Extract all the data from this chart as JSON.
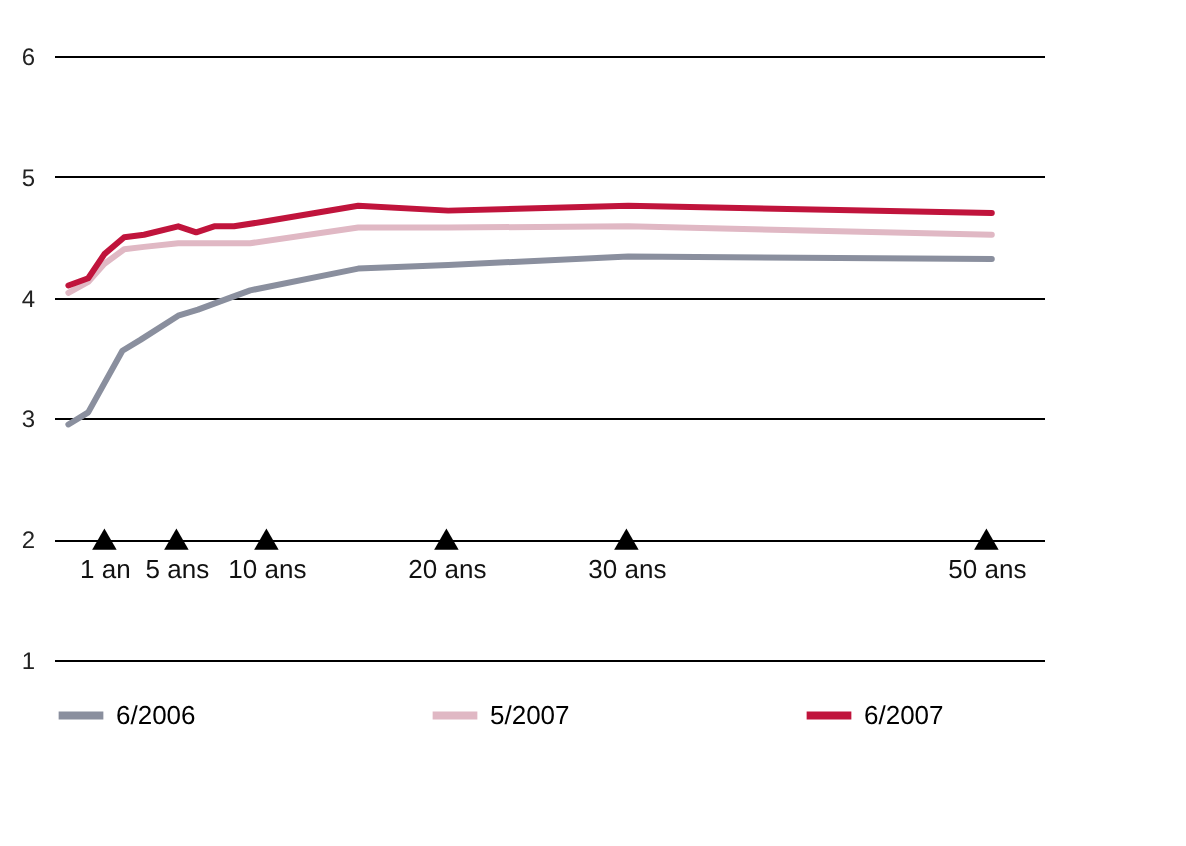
{
  "chart_data": {
    "type": "line",
    "xlim": [
      -1.8,
      53.2
    ],
    "ylim": [
      1,
      6
    ],
    "yticks": [
      1,
      2,
      3,
      4,
      5,
      6
    ],
    "grid": "y",
    "legend": "bottom",
    "xticks": [
      {
        "value": 1,
        "label": "1 an"
      },
      {
        "value": 5,
        "label": "5 ans"
      },
      {
        "value": 10,
        "label": "10 ans"
      },
      {
        "value": 20,
        "label": "20 ans"
      },
      {
        "value": 30,
        "label": "30 ans"
      },
      {
        "value": 50,
        "label": "50 ans"
      }
    ],
    "series": [
      {
        "name": "6/2006",
        "color": "#8a8f9e",
        "x": [
          -1,
          0.1,
          2,
          3,
          5.1,
          6.2,
          8,
          9.1,
          15.1,
          20.1,
          30.1,
          50.3
        ],
        "values": [
          2.95,
          3.05,
          3.56,
          3.65,
          3.85,
          3.9,
          4.0,
          4.06,
          4.24,
          4.27,
          4.34,
          4.32
        ]
      },
      {
        "name": "5/2007",
        "color": "#e0b8c4",
        "x": [
          -1,
          0.1,
          1,
          2.1,
          3.2,
          5.1,
          9.1,
          15.1,
          20.1,
          30.1,
          50.3
        ],
        "values": [
          4.04,
          4.13,
          4.28,
          4.4,
          4.42,
          4.45,
          4.45,
          4.58,
          4.58,
          4.59,
          4.52
        ]
      },
      {
        "name": "6/2007",
        "color": "#c0143c",
        "x": [
          -1,
          0.1,
          1,
          2.1,
          3.2,
          5.1,
          6.1,
          7.1,
          8.2,
          9.9,
          15.1,
          20.1,
          30.1,
          50.3
        ],
        "values": [
          4.1,
          4.16,
          4.36,
          4.5,
          4.52,
          4.59,
          4.54,
          4.59,
          4.59,
          4.63,
          4.76,
          4.72,
          4.76,
          4.7
        ]
      },
      {
        "type": "scatter",
        "marker": "triangle",
        "color": "#000000",
        "x": [
          1,
          5,
          10,
          20,
          30,
          50
        ],
        "values": [
          2,
          2,
          2,
          2,
          2,
          2
        ]
      }
    ]
  }
}
